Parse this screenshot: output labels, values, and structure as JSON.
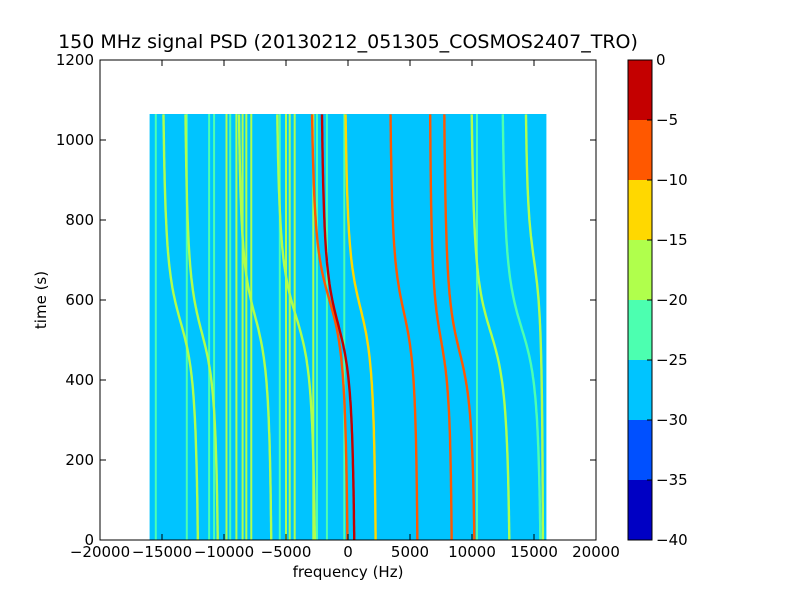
{
  "chart_data": {
    "type": "heatmap",
    "title": "150 MHz signal PSD (20130212_051305_COSMOS2407_TRO)",
    "xlabel": "frequency (Hz)",
    "ylabel": "time (s)",
    "xlim": [
      -20000,
      20000
    ],
    "ylim": [
      0,
      1200
    ],
    "x_ticks": [
      -20000,
      -15000,
      -10000,
      -5000,
      0,
      5000,
      10000,
      15000,
      20000
    ],
    "y_ticks": [
      0,
      200,
      400,
      600,
      800,
      1000,
      1200
    ],
    "data_extent": {
      "x": [
        -16000,
        16000
      ],
      "y": [
        0,
        1065
      ]
    },
    "grid": false,
    "background_level_db": -28,
    "colorbar": {
      "levels": [
        -40,
        -35,
        -30,
        -25,
        -20,
        -15,
        -10,
        -5,
        0
      ],
      "tick_labels": [
        "−40",
        "−35",
        "−30",
        "−25",
        "−20",
        "−15",
        "−10",
        "−5",
        "0"
      ],
      "colors": [
        "#0000c4",
        "#0050ff",
        "#00c4ff",
        "#4cffb0",
        "#b0ff4c",
        "#ffd800",
        "#ff5800",
        "#c40000"
      ]
    },
    "vertical_lines": [
      {
        "x": -15500,
        "level_db": -22
      },
      {
        "x": -13000,
        "level_db": -22
      },
      {
        "x": -11200,
        "level_db": -23
      },
      {
        "x": -10800,
        "level_db": -22
      },
      {
        "x": -9800,
        "level_db": -16
      },
      {
        "x": -9500,
        "level_db": -23
      },
      {
        "x": -9000,
        "level_db": -20
      },
      {
        "x": -8500,
        "level_db": -16
      },
      {
        "x": -8200,
        "level_db": -18
      },
      {
        "x": -7800,
        "level_db": -20
      },
      {
        "x": -5500,
        "level_db": -22
      },
      {
        "x": -5000,
        "level_db": -16
      },
      {
        "x": -4700,
        "level_db": -16
      },
      {
        "x": -4300,
        "level_db": -18
      },
      {
        "x": -2800,
        "level_db": -20
      },
      {
        "x": -2500,
        "level_db": -22
      },
      {
        "x": -1700,
        "level_db": -22
      },
      {
        "x": -300,
        "level_db": -22
      },
      {
        "x": 10400,
        "level_db": -23
      }
    ],
    "doppler_tracks": [
      {
        "f_center": -13500,
        "t_center": 545,
        "width": 3200,
        "level_db": -18
      },
      {
        "f_center": -11800,
        "t_center": 520,
        "width": 3000,
        "level_db": -20
      },
      {
        "f_center": -7500,
        "t_center": 560,
        "width": 3000,
        "level_db": -18
      },
      {
        "f_center": -4200,
        "t_center": 560,
        "width": 3500,
        "level_db": -18
      },
      {
        "f_center": -1500,
        "t_center": 600,
        "width": 3300,
        "level_db": -8
      },
      {
        "f_center": -800,
        "t_center": 540,
        "width": 3000,
        "level_db": -5
      },
      {
        "f_center": 1000,
        "t_center": 580,
        "width": 2800,
        "level_db": -14
      },
      {
        "f_center": 4500,
        "t_center": 570,
        "width": 2500,
        "level_db": -7
      },
      {
        "f_center": 7500,
        "t_center": 500,
        "width": 2000,
        "level_db": -7
      },
      {
        "f_center": 9000,
        "t_center": 470,
        "width": 2800,
        "level_db": -8
      },
      {
        "f_center": 11500,
        "t_center": 520,
        "width": 3500,
        "level_db": -18
      },
      {
        "f_center": 14000,
        "t_center": 530,
        "width": 3500,
        "level_db": -22
      },
      {
        "f_center": 15000,
        "t_center": 700,
        "width": 1600,
        "level_db": -18
      }
    ]
  }
}
